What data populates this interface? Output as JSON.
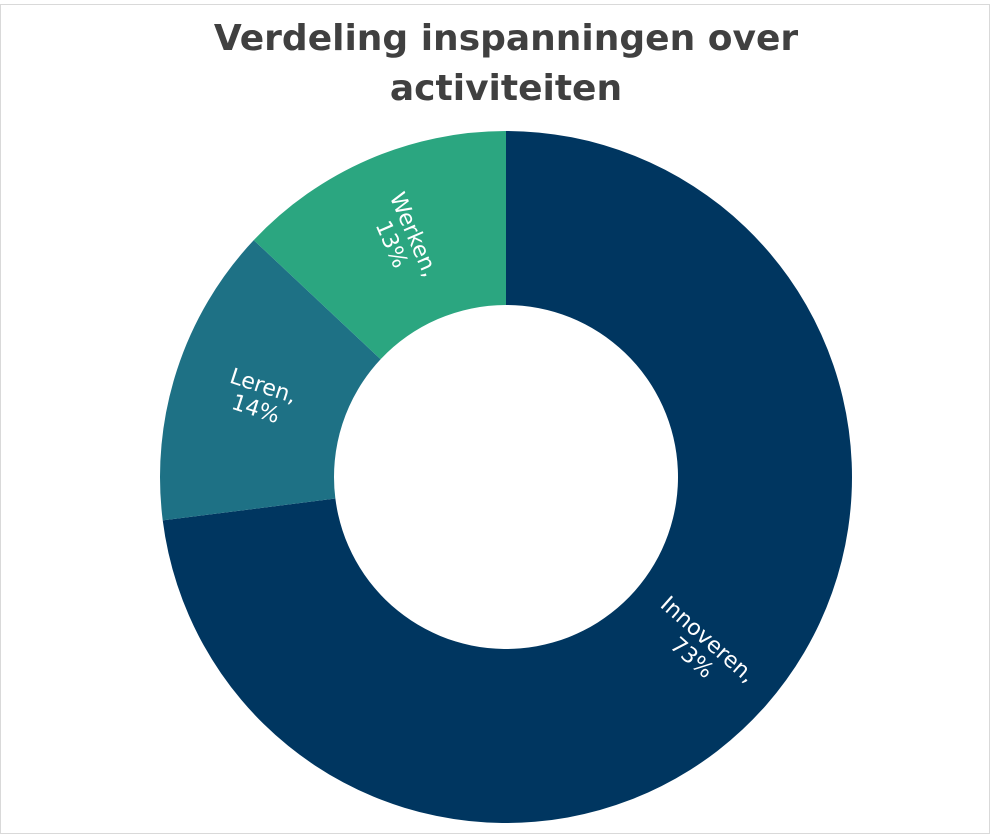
{
  "chart_data": {
    "type": "donut",
    "title": "Verdeling inspanningen over activiteiten",
    "title_lines": [
      "Verdeling inspanningen over",
      "activiteiten"
    ],
    "categories": [
      "Innoveren,",
      "Leren,",
      "Werken,"
    ],
    "values": [
      73,
      14,
      13
    ],
    "value_labels": [
      "73%",
      "14%",
      "13%"
    ],
    "colors": [
      "#003660",
      "#1e7185",
      "#2ba680"
    ]
  }
}
